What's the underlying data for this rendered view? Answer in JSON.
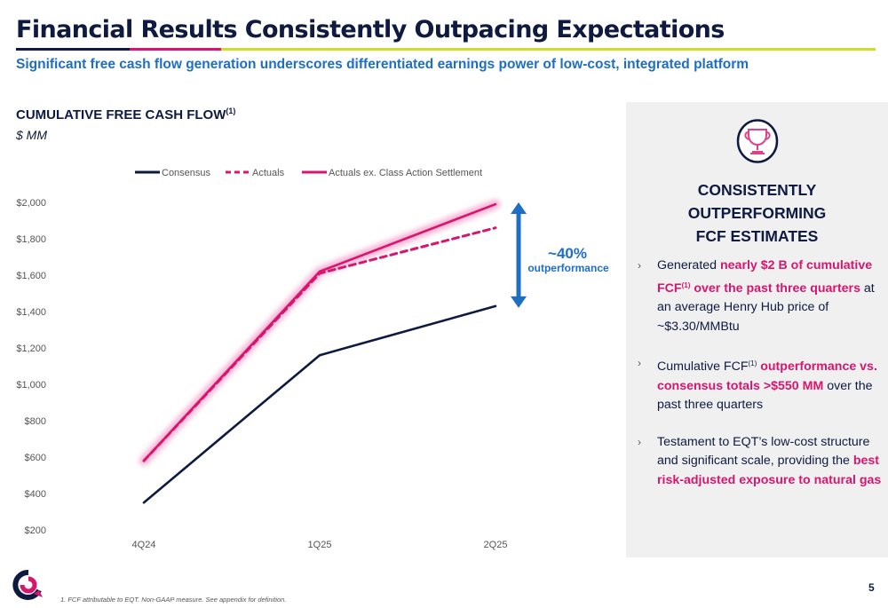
{
  "title": "Financial Results Consistently Outpacing Expectations",
  "subtitle": "Significant free cash flow generation underscores differentiated earnings power of low-cost, integrated platform",
  "colors": {
    "navy": "#0e1a3f",
    "pink": "#d6166f",
    "blue": "#1e6ec4",
    "lime": "#cfdc28"
  },
  "chart_header": {
    "title": "CUMULATIVE FREE CASH FLOW",
    "title_note": "(1)",
    "unit": "$ MM"
  },
  "chart_data": {
    "type": "line",
    "categories": [
      "4Q24",
      "1Q25",
      "2Q25"
    ],
    "series": [
      {
        "name": "Consensus",
        "values": [
          350,
          1160,
          1430
        ],
        "style": "solid",
        "color": "#0e1a3f"
      },
      {
        "name": "Actuals",
        "values": [
          580,
          1610,
          1860
        ],
        "style": "dashed",
        "color": "#d6166f"
      },
      {
        "name": "Actuals ex. Class Action Settlement",
        "values": [
          580,
          1620,
          1990
        ],
        "style": "solid",
        "color": "#d6166f"
      }
    ],
    "y_ticks": [
      "$200",
      "$400",
      "$600",
      "$800",
      "$1,000",
      "$1,200",
      "$1,400",
      "$1,600",
      "$1,800",
      "$2,000"
    ],
    "ylim": [
      200,
      2000
    ],
    "legend": "top",
    "grid": false,
    "annotation": {
      "value": "~40%",
      "label": "outperformance"
    }
  },
  "panel": {
    "icon": "trophy-icon",
    "heading": [
      "CONSISTENTLY",
      "OUTPERFORMING",
      "FCF ESTIMATES"
    ],
    "bullet_mark": "›",
    "bullets": [
      [
        {
          "t": "Generated "
        },
        {
          "t": "nearly $2 B of cumulative FCF",
          "hl": true
        },
        {
          "t": "(1)",
          "sup": true,
          "hl": true
        },
        {
          "t": " over the past three quarters",
          "hl": true
        },
        {
          "t": " at an average Henry Hub price of ~$3.30/MMBtu"
        }
      ],
      [
        {
          "t": "Cumulative FCF"
        },
        {
          "t": "(1)",
          "sup": true
        },
        {
          "t": " outperformance vs. consensus totals >$550 MM",
          "hl": true
        },
        {
          "t": " over the past three quarters"
        }
      ],
      [
        {
          "t": "Testament to EQT’s low-cost structure and significant scale, providing the "
        },
        {
          "t": "best risk-adjusted exposure to natural gas",
          "hl": true
        }
      ]
    ]
  },
  "footnote": "1. FCF attributable to EQT. Non-GAAP measure. See appendix for definition.",
  "page_number": "5"
}
